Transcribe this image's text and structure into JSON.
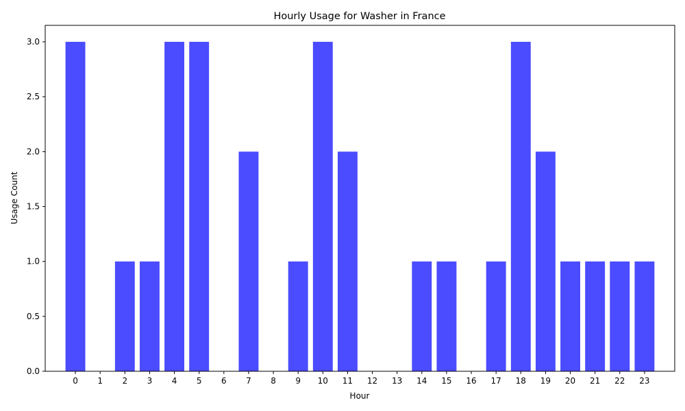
{
  "chart_data": {
    "type": "bar",
    "title": "Hourly Usage for Washer in France",
    "xlabel": "Hour",
    "ylabel": "Usage Count",
    "categories": [
      "0",
      "1",
      "2",
      "3",
      "4",
      "5",
      "6",
      "7",
      "8",
      "9",
      "10",
      "11",
      "12",
      "13",
      "14",
      "15",
      "16",
      "17",
      "18",
      "19",
      "20",
      "21",
      "22",
      "23"
    ],
    "values": [
      3,
      0,
      1,
      1,
      3,
      3,
      0,
      2,
      0,
      1,
      3,
      2,
      0,
      0,
      1,
      1,
      0,
      1,
      3,
      2,
      1,
      1,
      1,
      1
    ],
    "ylim": [
      0,
      3.15
    ],
    "yticks": [
      "0.0",
      "0.5",
      "1.0",
      "1.5",
      "2.0",
      "2.5",
      "3.0"
    ],
    "bar_color": "#4B4BFF",
    "grid": false,
    "legend": "none"
  }
}
